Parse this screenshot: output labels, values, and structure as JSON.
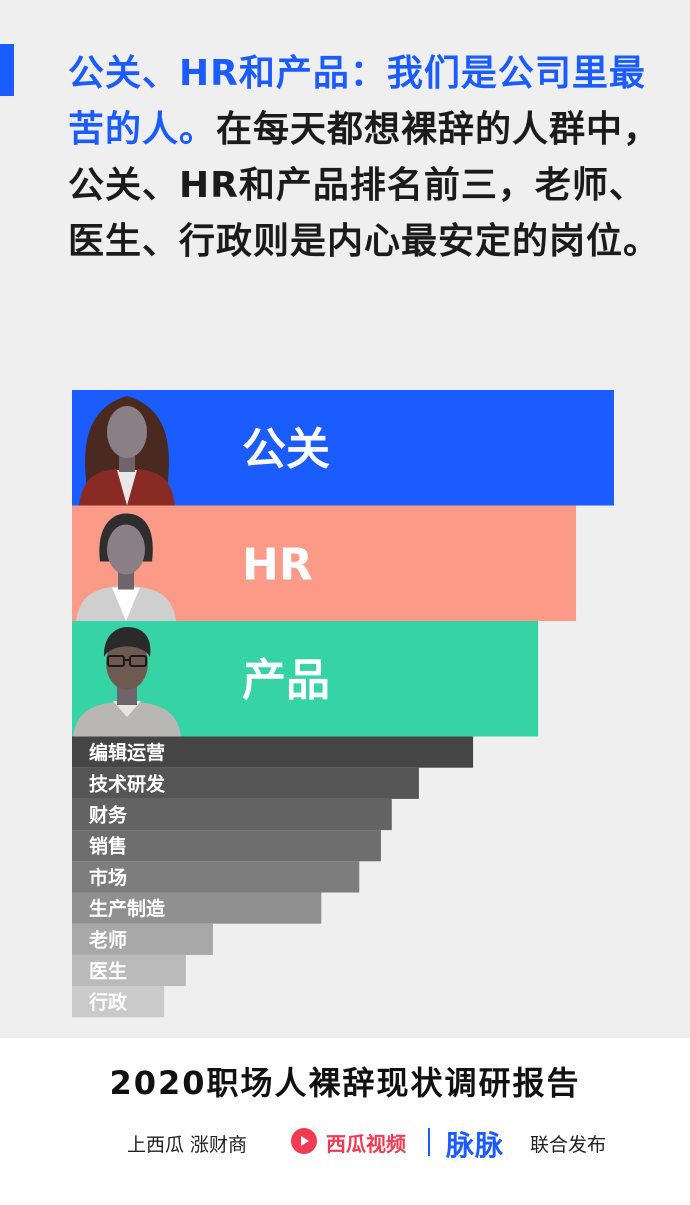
{
  "headline": {
    "highlight": "公关、HR和产品：我们是公司里最苦的人。",
    "body": "在每天都想裸辞的人群中，公关、HR和产品排名前三，老师、医生、行政则是内心最安定的岗位。"
  },
  "chart_data": {
    "type": "bar",
    "orientation": "horizontal",
    "title": "",
    "xlabel": "",
    "ylabel": "",
    "values_note": "no numeric axis or data labels shown; values are relative bar lengths read from the image",
    "categories": [
      "公关",
      "HR",
      "产品",
      "编辑运营",
      "技术研发",
      "财务",
      "销售",
      "市场",
      "生产制造",
      "老师",
      "医生",
      "行政"
    ],
    "values": [
      100,
      93,
      86,
      74,
      64,
      59,
      57,
      53,
      46,
      26,
      21,
      17
    ],
    "colors": [
      "#1a5cff",
      "#fa9a87",
      "#36d4a4",
      "#454545",
      "#555555",
      "#636363",
      "#6e6e6e",
      "#7d7d7d",
      "#909090",
      "#a8a8a8",
      "#bababa",
      "#cacaca"
    ],
    "featured": [
      {
        "category": "公关",
        "icon": "woman-avatar-icon"
      },
      {
        "category": "HR",
        "icon": "woman-short-hair-avatar-icon"
      },
      {
        "category": "产品",
        "icon": "man-glasses-avatar-icon"
      }
    ]
  },
  "footer": {
    "report_title": "2020职场人裸辞现状调研报告",
    "credit_left": "上西瓜 涨财商",
    "brand_xigua": "西瓜视频",
    "brand_maimai": "脉脉",
    "credit_right": "联合发布"
  }
}
